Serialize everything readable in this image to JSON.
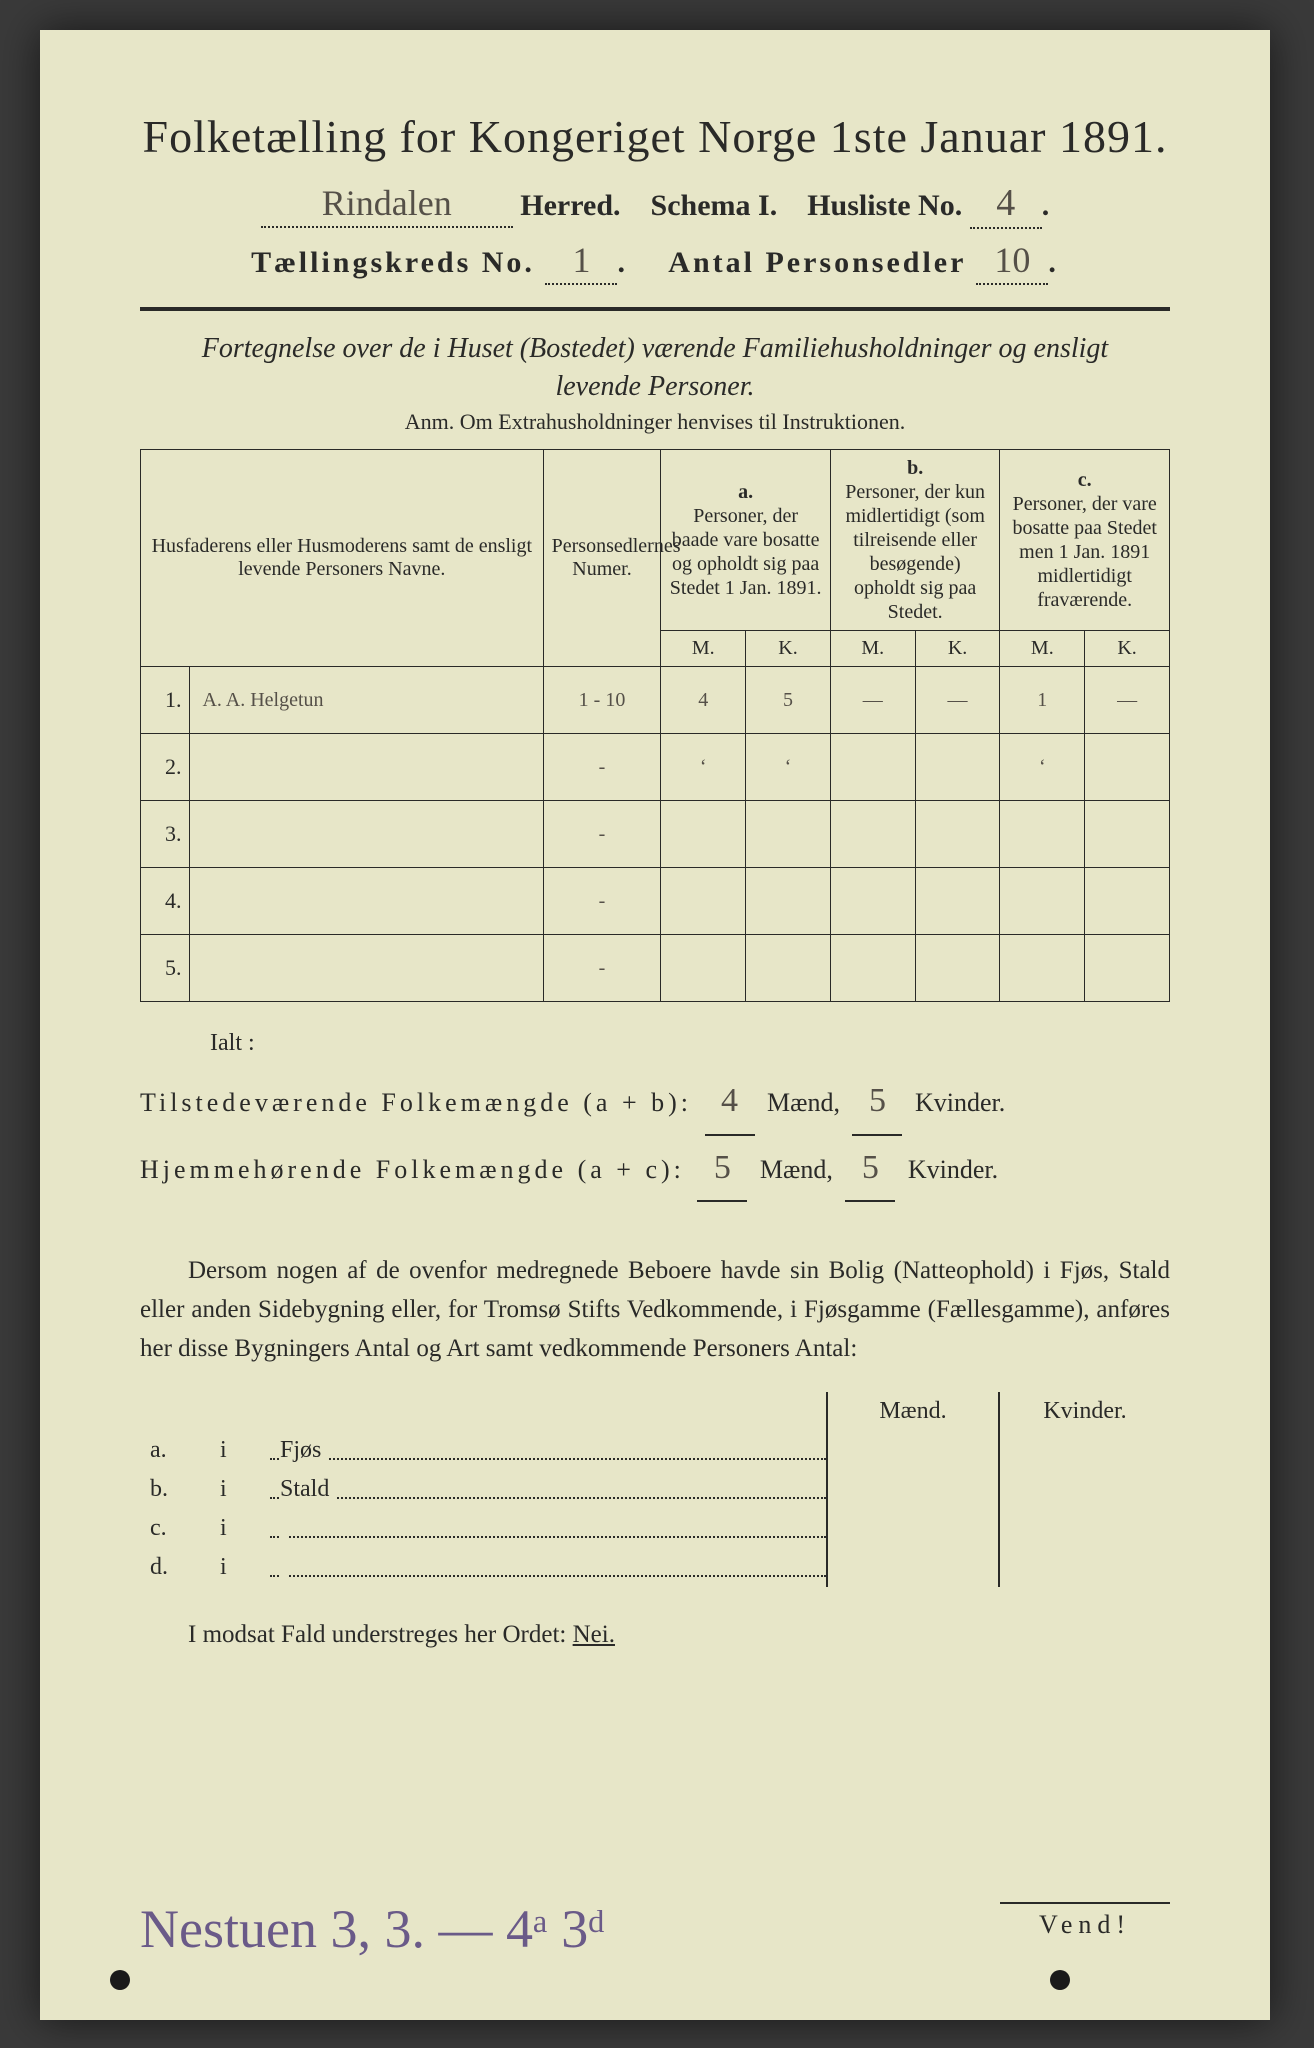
{
  "page": {
    "background_color": "#3a3a3a",
    "paper_color": "#e7e6c8",
    "text_color": "#2a2a28",
    "handwriting_color": "#555048",
    "bottom_handwriting_color": "#6a5a88"
  },
  "header": {
    "title": "Folketælling for Kongeriget Norge 1ste Januar 1891.",
    "herred_value": "Rindalen",
    "herred_label": "Herred.",
    "schema_label": "Schema I.",
    "husliste_label": "Husliste No.",
    "husliste_value": "4",
    "kreds_label": "Tællingskreds No.",
    "kreds_value": "1",
    "antal_label": "Antal Personsedler",
    "antal_value": "10"
  },
  "fortegnelse": {
    "line1": "Fortegnelse over de i Huset (Bostedet) værende Familiehusholdninger og ensligt",
    "line2": "levende Personer.",
    "anm": "Anm.   Om Extrahusholdninger henvises til Instruktionen."
  },
  "table": {
    "head": {
      "name": "Husfaderens eller Husmoderens samt de ensligt levende Personers Navne.",
      "person": "Personsedlernes Numer.",
      "a_label": "a.",
      "a_text": "Personer, der baade vare bosatte og opholdt sig paa Stedet 1 Jan. 1891.",
      "b_label": "b.",
      "b_text": "Personer, der kun midlertidigt (som tilreisende eller besøgende) opholdt sig paa Stedet.",
      "c_label": "c.",
      "c_text": "Personer, der vare bosatte paa Stedet men 1 Jan. 1891 midlertidigt fraværende.",
      "m": "M.",
      "k": "K."
    },
    "rows": [
      {
        "n": "1.",
        "name": "A. A. Helgetun",
        "p": "1 - 10",
        "am": "4",
        "ak": "5",
        "bm": "—",
        "bk": "—",
        "cm": "1",
        "ck": "—"
      },
      {
        "n": "2.",
        "name": "",
        "p": "-",
        "am": "ʻ",
        "ak": "ʻ",
        "bm": "",
        "bk": "",
        "cm": "ʻ",
        "ck": ""
      },
      {
        "n": "3.",
        "name": "",
        "p": "-",
        "am": "",
        "ak": "",
        "bm": "",
        "bk": "",
        "cm": "",
        "ck": ""
      },
      {
        "n": "4.",
        "name": "",
        "p": "-",
        "am": "",
        "ak": "",
        "bm": "",
        "bk": "",
        "cm": "",
        "ck": ""
      },
      {
        "n": "5.",
        "name": "",
        "p": "-",
        "am": "",
        "ak": "",
        "bm": "",
        "bk": "",
        "cm": "",
        "ck": ""
      }
    ]
  },
  "sums": {
    "ialt": "Ialt :",
    "line1_label": "Tilstedeværende Folkemængde (a + b):",
    "line1_m": "4",
    "line1_k": "5",
    "line2_label": "Hjemmehørende Folkemængde (a + c):",
    "line2_m": "5",
    "line2_k": "5",
    "maend": "Mænd,",
    "kvinder": "Kvinder."
  },
  "paragraph": {
    "text": "Dersom nogen af de ovenfor medregnede Beboere havde sin Bolig (Natteophold) i Fjøs, Stald eller anden Sidebygning eller, for Tromsø Stifts Vedkommende, i Fjøsgamme (Fællesgamme), anføres her disse Bygningers Antal og Art samt vedkommende Personers Antal:"
  },
  "side": {
    "head_m": "Mænd.",
    "head_k": "Kvinder.",
    "rows": [
      {
        "k": "a.",
        "i": "i",
        "label": "Fjøs"
      },
      {
        "k": "b.",
        "i": "i",
        "label": "Stald"
      },
      {
        "k": "c.",
        "i": "i",
        "label": ""
      },
      {
        "k": "d.",
        "i": "i",
        "label": ""
      }
    ]
  },
  "nei": {
    "text_before": "I modsat Fald understreges her Ordet: ",
    "nei": "Nei."
  },
  "bottom": {
    "handwriting": "Nestuen   3, 3. —  4ᵃ  3ᵈ",
    "vend": "Vend!"
  }
}
